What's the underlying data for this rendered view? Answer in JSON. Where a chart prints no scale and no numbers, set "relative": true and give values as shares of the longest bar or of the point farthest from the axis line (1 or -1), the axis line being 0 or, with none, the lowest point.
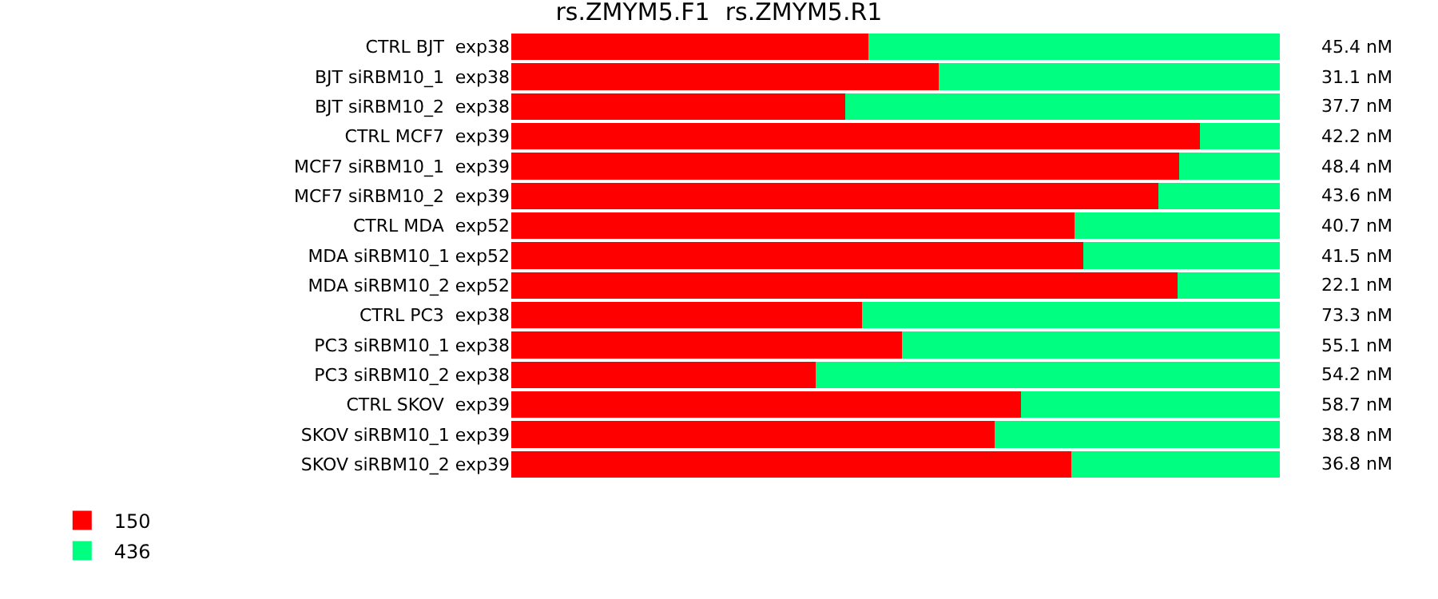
{
  "chart_data": {
    "type": "bar",
    "orientation": "horizontal",
    "stacked": true,
    "relative": true,
    "title": "rs.ZMYM5.F1  rs.ZMYM5.R1",
    "categories": [
      "CTRL BJT  exp38",
      "BJT siRBM10_1  exp38",
      "BJT siRBM10_2  exp38",
      "CTRL MCF7  exp39",
      "MCF7 siRBM10_1  exp39",
      "MCF7 siRBM10_2  exp39",
      "CTRL MDA  exp52",
      "MDA siRBM10_1 exp52",
      "MDA siRBM10_2 exp52",
      "CTRL PC3  exp38",
      "PC3 siRBM10_1 exp38",
      "PC3 siRBM10_2 exp38",
      "CTRL SKOV  exp39",
      "SKOV siRBM10_1 exp39",
      "SKOV siRBM10_2 exp39"
    ],
    "series": [
      {
        "name": "150",
        "color": "#ff0000",
        "values": [
          0.465,
          0.556,
          0.435,
          0.896,
          0.869,
          0.842,
          0.733,
          0.744,
          0.867,
          0.456,
          0.508,
          0.396,
          0.663,
          0.629,
          0.729
        ]
      },
      {
        "name": "436",
        "color": "#00ff80",
        "values": [
          0.535,
          0.444,
          0.565,
          0.104,
          0.131,
          0.158,
          0.267,
          0.256,
          0.133,
          0.544,
          0.492,
          0.604,
          0.337,
          0.371,
          0.271
        ]
      }
    ],
    "annotations": [
      "45.4 nM",
      "31.1 nM",
      "37.7 nM",
      "42.2 nM",
      "48.4 nM",
      "43.6 nM",
      "40.7 nM",
      "41.5 nM",
      "22.1 nM",
      "73.3 nM",
      "55.1 nM",
      "54.2 nM",
      "58.7 nM",
      "38.8 nM",
      "36.8 nM"
    ],
    "legend": "bottom left"
  }
}
